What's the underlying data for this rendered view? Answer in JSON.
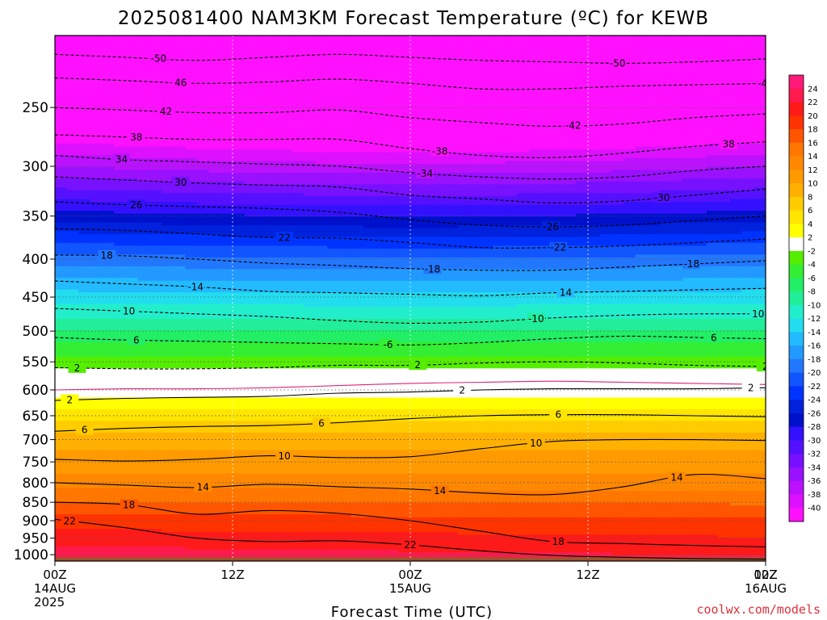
{
  "chart_data": {
    "type": "heatmap",
    "title": "2025081400 NAM3KM Forecast Temperature (ºC) for KEWB",
    "xlabel": "Forecast Time (UTC)",
    "ylabel": "",
    "credit": "coolwx.com/models",
    "y_scale": "log-pressure",
    "y_range_hpa": [
      200,
      1020
    ],
    "y_ticks": [
      250,
      300,
      350,
      400,
      450,
      500,
      550,
      600,
      650,
      700,
      750,
      800,
      850,
      900,
      950,
      1000
    ],
    "x_range_hours": [
      0,
      48
    ],
    "x_ticks": [
      {
        "hour": 0,
        "lines": [
          "00Z",
          "14AUG",
          "2025"
        ]
      },
      {
        "hour": 12,
        "lines": [
          "12Z"
        ]
      },
      {
        "hour": 24,
        "lines": [
          "00Z",
          "15AUG"
        ]
      },
      {
        "hour": 36,
        "lines": [
          "12Z"
        ]
      },
      {
        "hour": 48,
        "lines": [
          "00Z",
          "16AUG"
        ]
      },
      {
        "hour": 60,
        "lines": [
          "12Z"
        ]
      }
    ],
    "grid": "dotted vertical at ticks, dotted horizontal at pressure levels",
    "colorbar": {
      "labels": [
        24,
        22,
        20,
        18,
        16,
        14,
        12,
        10,
        8,
        6,
        4,
        2,
        -2,
        -4,
        -6,
        -8,
        -10,
        -12,
        -14,
        -16,
        -18,
        -20,
        -22,
        -24,
        -26,
        -28,
        -30,
        -32,
        -34,
        -36,
        -38,
        -40
      ],
      "colors": [
        "#ff1a7a",
        "#ff1a4d",
        "#ff1a1a",
        "#ff3300",
        "#ff5500",
        "#ff7700",
        "#ff8800",
        "#ff9a00",
        "#ffb000",
        "#ffcc00",
        "#ffe600",
        "#ffff00",
        "#ffffff",
        "#55ee00",
        "#33ee33",
        "#22ee66",
        "#22ee99",
        "#22eecc",
        "#22ddee",
        "#22bbff",
        "#2299ff",
        "#2277ff",
        "#1155ff",
        "#0033ff",
        "#0022dd",
        "#0011cc",
        "#3311ff",
        "#5511ff",
        "#7711ff",
        "#9911ff",
        "#bb11ff",
        "#dd11ff",
        "#ff11ff"
      ]
    },
    "profile": [
      {
        "p": 200,
        "t": -56
      },
      {
        "p": 250,
        "t": -46
      },
      {
        "p": 300,
        "t": -36
      },
      {
        "p": 350,
        "t": -27
      },
      {
        "p": 400,
        "t": -19
      },
      {
        "p": 450,
        "t": -13
      },
      {
        "p": 500,
        "t": -8
      },
      {
        "p": 550,
        "t": -3
      },
      {
        "p": 600,
        "t": 1
      },
      {
        "p": 650,
        "t": 5
      },
      {
        "p": 700,
        "t": 9
      },
      {
        "p": 750,
        "t": 11
      },
      {
        "p": 800,
        "t": 13
      },
      {
        "p": 850,
        "t": 16
      },
      {
        "p": 900,
        "t": 19
      },
      {
        "p": 950,
        "t": 21
      },
      {
        "p": 1000,
        "t": 23
      },
      {
        "p": 1020,
        "t": 24
      }
    ],
    "contours": [
      {
        "value": -50,
        "linestyle": "dashed",
        "p": [
          212,
          214,
          216,
          214,
          212,
          214,
          216,
          217,
          218,
          217,
          215
        ],
        "labels": [
          {
            "hour": 7,
            "text": "-50"
          },
          {
            "hour": 38,
            "text": "-50"
          }
        ]
      },
      {
        "value": -46,
        "linestyle": "dashed",
        "p": [
          228,
          230,
          232,
          231,
          229,
          232,
          236,
          236,
          234,
          233,
          232
        ],
        "labels": [
          {
            "hour": 8.5,
            "text": "46"
          },
          {
            "hour": 48,
            "text": "-46"
          }
        ]
      },
      {
        "value": -42,
        "linestyle": "dashed",
        "p": [
          250,
          252,
          254,
          254,
          252,
          258,
          262,
          265,
          263,
          258,
          255
        ],
        "labels": [
          {
            "hour": 7.5,
            "text": "42"
          },
          {
            "hour": 35,
            "text": "-42"
          }
        ]
      },
      {
        "value": -38,
        "linestyle": "dashed",
        "p": [
          272,
          274,
          276,
          276,
          276,
          284,
          290,
          292,
          288,
          282,
          278
        ],
        "labels": [
          {
            "hour": 5.5,
            "text": "38"
          },
          {
            "hour": 26,
            "text": "-38"
          },
          {
            "hour": 45.5,
            "text": "38"
          }
        ]
      },
      {
        "value": -34,
        "linestyle": "dashed",
        "p": [
          290,
          294,
          296,
          298,
          300,
          306,
          310,
          312,
          310,
          304,
          300
        ],
        "labels": [
          {
            "hour": 4.5,
            "text": "34"
          },
          {
            "hour": 25,
            "text": "-34"
          },
          {
            "hour": 50,
            "text": "34"
          }
        ]
      },
      {
        "value": -30,
        "linestyle": "dashed",
        "p": [
          310,
          313,
          316,
          318,
          320,
          328,
          332,
          336,
          334,
          328,
          322
        ],
        "labels": [
          {
            "hour": 8.5,
            "text": "30"
          },
          {
            "hour": 41,
            "text": "-30"
          }
        ]
      },
      {
        "value": -26,
        "linestyle": "dashed",
        "p": [
          335,
          338,
          340,
          342,
          346,
          354,
          360,
          362,
          360,
          355,
          350
        ],
        "labels": [
          {
            "hour": 5.5,
            "text": "26"
          },
          {
            "hour": 33.5,
            "text": "-26"
          },
          {
            "hour": 50,
            "text": "26"
          }
        ]
      },
      {
        "value": -22,
        "linestyle": "dashed",
        "p": [
          364,
          366,
          370,
          374,
          375,
          380,
          386,
          386,
          384,
          380,
          376
        ],
        "labels": [
          {
            "hour": 15.5,
            "text": "22"
          },
          {
            "hour": 34,
            "text": "-22"
          },
          {
            "hour": 50,
            "text": "22"
          }
        ]
      },
      {
        "value": -18,
        "linestyle": "dashed",
        "p": [
          395,
          396,
          400,
          405,
          408,
          412,
          414,
          414,
          410,
          406,
          402
        ],
        "labels": [
          {
            "hour": 3.5,
            "text": "18"
          },
          {
            "hour": 25.5,
            "text": "-18"
          },
          {
            "hour": 43,
            "text": "-18"
          }
        ]
      },
      {
        "value": -14,
        "linestyle": "dashed",
        "p": [
          428,
          432,
          436,
          442,
          444,
          446,
          448,
          444,
          442,
          440,
          438
        ],
        "labels": [
          {
            "hour": 9.5,
            "text": "-14"
          },
          {
            "hour": 34.5,
            "text": "14"
          },
          {
            "hour": 50,
            "text": "14"
          }
        ]
      },
      {
        "value": -10,
        "linestyle": "dashed",
        "p": [
          466,
          470,
          474,
          478,
          484,
          488,
          486,
          480,
          476,
          474,
          474
        ],
        "labels": [
          {
            "hour": 5,
            "text": "10"
          },
          {
            "hour": 32.5,
            "text": "-10"
          },
          {
            "hour": 47.5,
            "text": "10"
          }
        ]
      },
      {
        "value": -6,
        "linestyle": "dashed",
        "p": [
          510,
          514,
          516,
          518,
          520,
          522,
          518,
          512,
          508,
          510,
          512
        ],
        "labels": [
          {
            "hour": 5.5,
            "text": "6"
          },
          {
            "hour": 22.5,
            "text": "-6"
          },
          {
            "hour": 44.5,
            "text": "6"
          }
        ]
      },
      {
        "value": -2,
        "linestyle": "dashed",
        "p": [
          560,
          562,
          562,
          560,
          556,
          556,
          552,
          550,
          552,
          556,
          558
        ],
        "labels": [
          {
            "hour": 1.5,
            "text": "2"
          },
          {
            "hour": 24.5,
            "text": "2"
          },
          {
            "hour": 48,
            "text": "2"
          }
        ]
      },
      {
        "value": 0,
        "linestyle": "solid",
        "color": "#dd2277",
        "p": [
          600,
          598,
          598,
          596,
          592,
          588,
          586,
          584,
          586,
          588,
          590
        ],
        "labels": []
      },
      {
        "value": 2,
        "linestyle": "solid",
        "p": [
          620,
          616,
          614,
          612,
          606,
          604,
          600,
          598,
          598,
          598,
          596
        ],
        "labels": [
          {
            "hour": 1,
            "text": "2"
          },
          {
            "hour": 27.5,
            "text": "2"
          },
          {
            "hour": 47,
            "text": "2"
          }
        ]
      },
      {
        "value": 6,
        "linestyle": "solid",
        "p": [
          682,
          676,
          672,
          670,
          664,
          656,
          650,
          648,
          648,
          650,
          652
        ],
        "labels": [
          {
            "hour": 2,
            "text": "6"
          },
          {
            "hour": 18,
            "text": "6"
          },
          {
            "hour": 34,
            "text": "6"
          },
          {
            "hour": 49.5,
            "text": "6"
          }
        ]
      },
      {
        "value": 10,
        "linestyle": "solid",
        "p": [
          744,
          748,
          744,
          736,
          740,
          738,
          720,
          704,
          700,
          700,
          702
        ],
        "labels": [
          {
            "hour": 15.5,
            "text": "10"
          },
          {
            "hour": 32.5,
            "text": "10"
          },
          {
            "hour": 50,
            "text": "10"
          }
        ]
      },
      {
        "value": 14,
        "linestyle": "solid",
        "p": [
          800,
          806,
          812,
          804,
          810,
          816,
          826,
          830,
          810,
          780,
          790
        ],
        "labels": [
          {
            "hour": 10,
            "text": "14"
          },
          {
            "hour": 26,
            "text": "14"
          },
          {
            "hour": 42,
            "text": "14"
          }
        ]
      },
      {
        "value": 18,
        "linestyle": "solid",
        "p": [
          850,
          856,
          882,
          872,
          880,
          900,
          930,
          960,
          966,
          972,
          976
        ],
        "labels": [
          {
            "hour": 5,
            "text": "18"
          },
          {
            "hour": 34,
            "text": "18"
          },
          {
            "hour": 49,
            "text": "18"
          }
        ]
      },
      {
        "value": 22,
        "linestyle": "solid",
        "p": [
          896,
          920,
          950,
          960,
          958,
          970,
          988,
          1002,
          1008,
          1012,
          1014
        ],
        "labels": [
          {
            "hour": 1,
            "text": "22"
          },
          {
            "hour": 24,
            "text": "22"
          }
        ]
      }
    ],
    "ground": {
      "color": "#a0522d",
      "top_hpa": 1008
    }
  }
}
